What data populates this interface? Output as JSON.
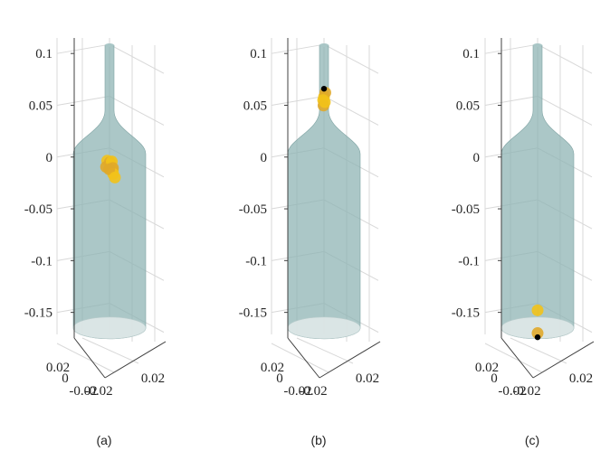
{
  "chart_data": [
    {
      "type": "scatter",
      "subplot_label": "(a)",
      "z_ticks": [
        "0.1",
        "0.05",
        "0",
        "-0.05",
        "-0.1",
        "-0.15"
      ],
      "z_values": [
        0.1,
        0.05,
        0,
        -0.05,
        -0.1,
        -0.15
      ],
      "x_ticks": [
        "0.02",
        "0",
        "-0.02"
      ],
      "y_ticks": [
        "-0.02",
        "0.02"
      ],
      "grid": true,
      "points": [
        {
          "x": -0.004,
          "y": 0.002,
          "z": -0.004
        },
        {
          "x": -0.002,
          "y": 0.004,
          "z": -0.006
        },
        {
          "x": 0.0,
          "y": 0.002,
          "z": -0.008
        },
        {
          "x": 0.002,
          "y": -0.002,
          "z": -0.01
        },
        {
          "x": 0.004,
          "y": 0.0,
          "z": -0.013
        },
        {
          "x": -0.003,
          "y": -0.002,
          "z": -0.009
        },
        {
          "x": 0.001,
          "y": 0.003,
          "z": -0.005
        },
        {
          "x": 0.003,
          "y": 0.002,
          "z": -0.011
        },
        {
          "x": 0.005,
          "y": -0.001,
          "z": -0.016
        },
        {
          "x": -0.001,
          "y": 0.001,
          "z": -0.012
        },
        {
          "x": 0.006,
          "y": 0.001,
          "z": -0.02
        }
      ],
      "highlight_points": []
    },
    {
      "type": "scatter",
      "subplot_label": "(b)",
      "z_ticks": [
        "0.1",
        "0.05",
        "0",
        "-0.05",
        "-0.1",
        "-0.15"
      ],
      "z_values": [
        0.1,
        0.05,
        0,
        -0.05,
        -0.1,
        -0.15
      ],
      "x_ticks": [
        "0.02",
        "0",
        "-0.02"
      ],
      "y_ticks": [
        "-0.02",
        "0.02"
      ],
      "grid": true,
      "points": [
        {
          "x": 0.0,
          "y": 0.0,
          "z": 0.058
        },
        {
          "x": 0.001,
          "y": 0.001,
          "z": 0.062
        },
        {
          "x": -0.001,
          "y": 0.0,
          "z": 0.055
        },
        {
          "x": 0.0,
          "y": -0.001,
          "z": 0.05
        },
        {
          "x": 0.001,
          "y": 0.0,
          "z": 0.053
        }
      ],
      "highlight_points": [
        {
          "x": 0.0,
          "y": 0.0,
          "z": 0.066
        }
      ]
    },
    {
      "type": "scatter",
      "subplot_label": "(c)",
      "z_ticks": [
        "0.1",
        "0.05",
        "0",
        "-0.05",
        "-0.1",
        "-0.15"
      ],
      "z_values": [
        0.1,
        0.05,
        0,
        -0.05,
        -0.1,
        -0.15
      ],
      "x_ticks": [
        "0.02",
        "0",
        "-0.02"
      ],
      "y_ticks": [
        "-0.02",
        "0.02"
      ],
      "grid": true,
      "points": [
        {
          "x": 0.0,
          "y": 0.0,
          "z": -0.148
        },
        {
          "x": 0.0,
          "y": 0.0,
          "z": -0.17
        }
      ],
      "highlight_points": [
        {
          "x": 0.0,
          "y": 0.0,
          "z": -0.174
        }
      ]
    }
  ],
  "colors": {
    "bottle_fill": "#8fb4b4",
    "bottle_base": "#dfe8e8",
    "grid": "#d8d8d8",
    "axis": "#404040",
    "particle": "#f2c21a",
    "particle_alt": "#e0a82a",
    "highlight": "#000000"
  }
}
